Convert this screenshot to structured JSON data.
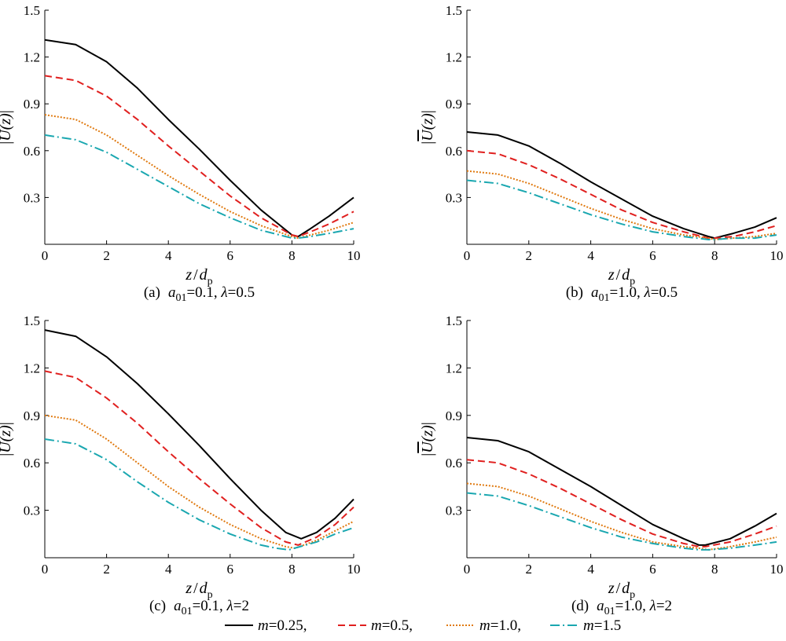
{
  "chart_data": [
    {
      "type": "line",
      "panel": "a",
      "caption": {
        "label": "(a)",
        "var1": "a",
        "sub1": "01",
        "val1": "=0.1, ",
        "var2": "λ",
        "val2": "=0.5"
      },
      "xlabel": {
        "var": "z",
        "sep": "/",
        "den": "d",
        "sub": "p"
      },
      "ylabel": {
        "open": "|",
        "var": "U",
        "arg": "(z)",
        "close": "|"
      },
      "xlim": [
        0,
        10
      ],
      "ylim": [
        0,
        1.5
      ],
      "xticks": [
        "0",
        "2",
        "4",
        "6",
        "8",
        "10"
      ],
      "yticks": [
        "0.3",
        "0.6",
        "0.9",
        "1.2",
        "1.5"
      ],
      "series": [
        {
          "name": "m=0.25",
          "x": [
            0,
            1,
            2,
            3,
            4,
            5,
            6,
            7,
            8,
            8.2,
            8.6,
            9.2,
            10
          ],
          "y": [
            1.31,
            1.28,
            1.17,
            1.0,
            0.8,
            0.61,
            0.41,
            0.22,
            0.06,
            0.05,
            0.1,
            0.18,
            0.3
          ]
        },
        {
          "name": "m=0.5",
          "x": [
            0,
            1,
            2,
            3,
            4,
            5,
            6,
            7,
            8,
            8.2,
            8.6,
            9.2,
            10
          ],
          "y": [
            1.08,
            1.05,
            0.95,
            0.8,
            0.63,
            0.47,
            0.31,
            0.17,
            0.06,
            0.05,
            0.08,
            0.13,
            0.21
          ]
        },
        {
          "name": "m=1.0",
          "x": [
            0,
            1,
            2,
            3,
            4,
            5,
            6,
            7,
            8,
            8.2,
            8.6,
            9.2,
            10
          ],
          "y": [
            0.83,
            0.8,
            0.7,
            0.57,
            0.44,
            0.32,
            0.21,
            0.12,
            0.05,
            0.04,
            0.06,
            0.09,
            0.14
          ]
        },
        {
          "name": "m=1.5",
          "x": [
            0,
            1,
            2,
            3,
            4,
            5,
            6,
            7,
            8,
            8.2,
            8.6,
            9.2,
            10
          ],
          "y": [
            0.7,
            0.67,
            0.59,
            0.48,
            0.37,
            0.26,
            0.17,
            0.09,
            0.04,
            0.04,
            0.05,
            0.07,
            0.1
          ]
        }
      ]
    },
    {
      "type": "line",
      "panel": "b",
      "caption": {
        "label": "(b)",
        "var1": "a",
        "sub1": "01",
        "val1": "=1.0, ",
        "var2": "λ",
        "val2": "=0.5"
      },
      "xlabel": {
        "var": "z",
        "sep": "/",
        "den": "d",
        "sub": "p"
      },
      "ylabel": {
        "open": "|",
        "var": "U",
        "arg": "(z)",
        "close": "|"
      },
      "xlim": [
        0,
        10
      ],
      "ylim": [
        0,
        1.5
      ],
      "xticks": [
        "0",
        "2",
        "4",
        "6",
        "8",
        "10"
      ],
      "yticks": [
        "0.3",
        "0.6",
        "0.9",
        "1.2",
        "1.5"
      ],
      "series": [
        {
          "name": "m=0.25",
          "x": [
            0,
            1,
            2,
            3,
            4,
            5,
            6,
            7,
            7.8,
            8,
            8.6,
            9.3,
            10
          ],
          "y": [
            0.72,
            0.7,
            0.63,
            0.52,
            0.4,
            0.29,
            0.18,
            0.1,
            0.05,
            0.04,
            0.07,
            0.11,
            0.17
          ]
        },
        {
          "name": "m=0.5",
          "x": [
            0,
            1,
            2,
            3,
            4,
            5,
            6,
            7,
            7.8,
            8,
            8.6,
            9.3,
            10
          ],
          "y": [
            0.6,
            0.58,
            0.51,
            0.42,
            0.32,
            0.22,
            0.14,
            0.08,
            0.04,
            0.04,
            0.05,
            0.08,
            0.12
          ]
        },
        {
          "name": "m=1.0",
          "x": [
            0,
            1,
            2,
            3,
            4,
            5,
            6,
            7,
            7.8,
            8,
            8.6,
            9.3,
            10
          ],
          "y": [
            0.47,
            0.45,
            0.39,
            0.31,
            0.23,
            0.16,
            0.1,
            0.06,
            0.04,
            0.03,
            0.04,
            0.05,
            0.07
          ]
        },
        {
          "name": "m=1.5",
          "x": [
            0,
            1,
            2,
            3,
            4,
            5,
            6,
            7,
            7.8,
            8,
            8.6,
            9.3,
            10
          ],
          "y": [
            0.41,
            0.39,
            0.33,
            0.26,
            0.19,
            0.13,
            0.08,
            0.05,
            0.03,
            0.03,
            0.04,
            0.04,
            0.06
          ]
        }
      ]
    },
    {
      "type": "line",
      "panel": "c",
      "caption": {
        "label": "(c)",
        "var1": "a",
        "sub1": "01",
        "val1": "=0.1, ",
        "var2": "λ",
        "val2": "=2"
      },
      "xlabel": {
        "var": "z",
        "sep": "/",
        "den": "d",
        "sub": "p"
      },
      "ylabel": {
        "open": "|",
        "var": "U",
        "arg": "(z)",
        "close": "|"
      },
      "xlim": [
        0,
        10
      ],
      "ylim": [
        0,
        1.5
      ],
      "xticks": [
        "0",
        "2",
        "4",
        "6",
        "8",
        "10"
      ],
      "yticks": [
        "0.3",
        "0.6",
        "0.9",
        "1.2",
        "1.5"
      ],
      "series": [
        {
          "name": "m=0.25",
          "x": [
            0,
            1,
            2,
            3,
            4,
            5,
            6,
            7,
            7.8,
            8.3,
            8.8,
            9.4,
            10
          ],
          "y": [
            1.44,
            1.4,
            1.27,
            1.1,
            0.91,
            0.71,
            0.5,
            0.3,
            0.16,
            0.12,
            0.16,
            0.25,
            0.37
          ]
        },
        {
          "name": "m=0.5",
          "x": [
            0,
            1,
            2,
            3,
            4,
            5,
            6,
            7,
            7.8,
            8.2,
            8.8,
            9.4,
            10
          ],
          "y": [
            1.18,
            1.14,
            1.01,
            0.85,
            0.67,
            0.5,
            0.34,
            0.19,
            0.1,
            0.08,
            0.13,
            0.21,
            0.32
          ]
        },
        {
          "name": "m=1.0",
          "x": [
            0,
            1,
            2,
            3,
            4,
            5,
            6,
            7,
            7.8,
            8.1,
            8.8,
            9.4,
            10
          ],
          "y": [
            0.9,
            0.87,
            0.75,
            0.6,
            0.45,
            0.32,
            0.21,
            0.12,
            0.07,
            0.06,
            0.11,
            0.17,
            0.23
          ]
        },
        {
          "name": "m=1.5",
          "x": [
            0,
            1,
            2,
            3,
            4,
            5,
            6,
            7,
            7.5,
            7.9,
            8.8,
            9.4,
            10
          ],
          "y": [
            0.75,
            0.72,
            0.62,
            0.48,
            0.35,
            0.24,
            0.15,
            0.08,
            0.06,
            0.05,
            0.1,
            0.15,
            0.19
          ]
        }
      ]
    },
    {
      "type": "line",
      "panel": "d",
      "caption": {
        "label": "(d)",
        "var1": "a",
        "sub1": "01",
        "val1": "=1.0, ",
        "var2": "λ",
        "val2": "=2"
      },
      "xlabel": {
        "var": "z",
        "sep": "/",
        "den": "d",
        "sub": "p"
      },
      "ylabel": {
        "open": "|",
        "var": "U",
        "arg": "(z)",
        "close": "|"
      },
      "xlim": [
        0,
        10
      ],
      "ylim": [
        0,
        1.5
      ],
      "xticks": [
        "0",
        "2",
        "4",
        "6",
        "8",
        "10"
      ],
      "yticks": [
        "0.3",
        "0.6",
        "0.9",
        "1.2",
        "1.5"
      ],
      "series": [
        {
          "name": "m=0.25",
          "x": [
            0,
            1,
            2,
            3,
            4,
            5,
            6,
            7,
            7.5,
            7.7,
            8.5,
            9.3,
            10
          ],
          "y": [
            0.76,
            0.74,
            0.67,
            0.56,
            0.45,
            0.33,
            0.21,
            0.12,
            0.08,
            0.08,
            0.12,
            0.2,
            0.28
          ]
        },
        {
          "name": "m=0.5",
          "x": [
            0,
            1,
            2,
            3,
            4,
            5,
            6,
            7,
            7.5,
            7.7,
            8.5,
            9.3,
            10
          ],
          "y": [
            0.62,
            0.6,
            0.53,
            0.44,
            0.34,
            0.24,
            0.15,
            0.09,
            0.07,
            0.07,
            0.1,
            0.15,
            0.2
          ]
        },
        {
          "name": "m=1.0",
          "x": [
            0,
            1,
            2,
            3,
            4,
            5,
            6,
            7,
            7.5,
            7.8,
            8.5,
            9.3,
            10
          ],
          "y": [
            0.47,
            0.45,
            0.39,
            0.31,
            0.23,
            0.16,
            0.1,
            0.07,
            0.06,
            0.05,
            0.07,
            0.1,
            0.13
          ]
        },
        {
          "name": "m=1.5",
          "x": [
            0,
            1,
            2,
            3,
            4,
            5,
            6,
            7,
            7.5,
            7.8,
            8.5,
            9.3,
            10
          ],
          "y": [
            0.41,
            0.39,
            0.33,
            0.26,
            0.19,
            0.13,
            0.09,
            0.06,
            0.05,
            0.05,
            0.06,
            0.08,
            0.1
          ]
        }
      ]
    }
  ],
  "legend": {
    "items": [
      {
        "var": "m",
        "val": "=0.25,"
      },
      {
        "var": "m",
        "val": "=0.5,"
      },
      {
        "var": "m",
        "val": "=1.0,"
      },
      {
        "var": "m",
        "val": "=1.5"
      }
    ]
  },
  "series_styles": [
    {
      "color": "#000000",
      "dash": ""
    },
    {
      "color": "#e0201f",
      "dash": "9,5"
    },
    {
      "color": "#e07a10",
      "dash": "2,2"
    },
    {
      "color": "#1aa7b0",
      "dash": "12,4,2,4"
    }
  ]
}
